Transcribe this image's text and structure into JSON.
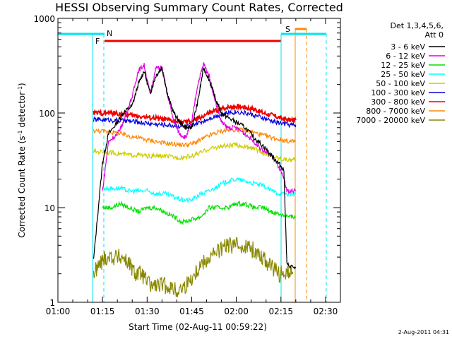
{
  "chart_data": {
    "type": "line",
    "title": "HESSI Observing Summary Count Rates, Corrected",
    "xlabel": "Start Time (02-Aug-11 00:59:22)",
    "ylabel": "Corrected Count Rate (s⁻¹ detector⁻¹)",
    "ylabel_main": "Corrected Count Rate (s",
    "ylabel_mid": " detector",
    "ylabel_end": ")",
    "ylabel_sup": "-1",
    "y_scale": "log",
    "ylim": [
      1,
      1000
    ],
    "xlim_minutes": [
      0,
      95
    ],
    "x_tick_labels": [
      "01:00",
      "01:15",
      "01:30",
      "01:45",
      "02:00",
      "02:15",
      "02:30"
    ],
    "x_tick_minutes": [
      0,
      15,
      30,
      45,
      60,
      75,
      90
    ],
    "y_tick_labels": [
      "1",
      "10",
      "100",
      "1000"
    ],
    "y_tick_values": [
      1,
      10,
      100,
      1000
    ],
    "grid": false,
    "legend_title": [
      "Det 1,3,4,5,6,",
      "Att 0"
    ],
    "legend_placement": "right",
    "series": [
      {
        "name": "3 - 6 keV",
        "color": "#000000",
        "points": [
          [
            12,
            2.8
          ],
          [
            15,
            30
          ],
          [
            17,
            60
          ],
          [
            20,
            80
          ],
          [
            22,
            100
          ],
          [
            25,
            120
          ],
          [
            27,
            200
          ],
          [
            29,
            280
          ],
          [
            31,
            160
          ],
          [
            33,
            250
          ],
          [
            35,
            300
          ],
          [
            37,
            150
          ],
          [
            39,
            100
          ],
          [
            41,
            80
          ],
          [
            43,
            70
          ],
          [
            45,
            70
          ],
          [
            47,
            130
          ],
          [
            49,
            300
          ],
          [
            51,
            220
          ],
          [
            53,
            140
          ],
          [
            55,
            100
          ],
          [
            57,
            90
          ],
          [
            60,
            80
          ],
          [
            63,
            70
          ],
          [
            66,
            55
          ],
          [
            69,
            45
          ],
          [
            72,
            35
          ],
          [
            74,
            30
          ],
          [
            76,
            25
          ],
          [
            77,
            2.5
          ],
          [
            80,
            2.3
          ]
        ]
      },
      {
        "name": "6 - 12 keV",
        "color": "#e000e0",
        "points": [
          [
            15,
            15
          ],
          [
            17,
            50
          ],
          [
            20,
            60
          ],
          [
            22,
            80
          ],
          [
            25,
            150
          ],
          [
            27,
            280
          ],
          [
            29,
            320
          ],
          [
            31,
            160
          ],
          [
            33,
            300
          ],
          [
            35,
            300
          ],
          [
            37,
            150
          ],
          [
            39,
            80
          ],
          [
            41,
            60
          ],
          [
            43,
            55
          ],
          [
            45,
            80
          ],
          [
            47,
            200
          ],
          [
            49,
            330
          ],
          [
            51,
            240
          ],
          [
            53,
            130
          ],
          [
            55,
            80
          ],
          [
            57,
            70
          ],
          [
            60,
            70
          ],
          [
            63,
            60
          ],
          [
            66,
            50
          ],
          [
            69,
            40
          ],
          [
            72,
            35
          ],
          [
            74,
            28
          ],
          [
            76,
            20
          ],
          [
            77,
            15
          ],
          [
            80,
            15
          ]
        ]
      },
      {
        "name": "12 - 25 keV",
        "color": "#00e000",
        "points": [
          [
            15,
            10
          ],
          [
            18,
            10
          ],
          [
            21,
            11
          ],
          [
            24,
            10
          ],
          [
            27,
            9
          ],
          [
            30,
            10
          ],
          [
            33,
            10
          ],
          [
            36,
            9
          ],
          [
            39,
            8
          ],
          [
            42,
            7
          ],
          [
            45,
            7.5
          ],
          [
            48,
            8
          ],
          [
            51,
            10
          ],
          [
            54,
            10
          ],
          [
            57,
            10
          ],
          [
            60,
            11
          ],
          [
            63,
            11
          ],
          [
            66,
            10
          ],
          [
            69,
            10
          ],
          [
            72,
            9
          ],
          [
            75,
            8.5
          ],
          [
            78,
            8
          ],
          [
            80,
            8
          ]
        ]
      },
      {
        "name": "25 - 50 keV",
        "color": "#00ffff",
        "points": [
          [
            15,
            16
          ],
          [
            18,
            16
          ],
          [
            21,
            16
          ],
          [
            24,
            15
          ],
          [
            27,
            15
          ],
          [
            30,
            15
          ],
          [
            33,
            14
          ],
          [
            36,
            14
          ],
          [
            39,
            13
          ],
          [
            42,
            12
          ],
          [
            45,
            12
          ],
          [
            48,
            14
          ],
          [
            51,
            15
          ],
          [
            54,
            17
          ],
          [
            57,
            19
          ],
          [
            60,
            20
          ],
          [
            63,
            19
          ],
          [
            66,
            18
          ],
          [
            69,
            17
          ],
          [
            72,
            15
          ],
          [
            75,
            14
          ],
          [
            78,
            14
          ],
          [
            80,
            14
          ]
        ]
      },
      {
        "name": "50 - 100 keV",
        "color": "#cccc00",
        "points": [
          [
            12,
            39
          ],
          [
            15,
            39
          ],
          [
            18,
            38
          ],
          [
            21,
            37
          ],
          [
            24,
            36
          ],
          [
            27,
            36
          ],
          [
            30,
            35
          ],
          [
            33,
            35
          ],
          [
            36,
            35
          ],
          [
            39,
            34
          ],
          [
            42,
            34
          ],
          [
            45,
            35
          ],
          [
            48,
            38
          ],
          [
            51,
            42
          ],
          [
            54,
            44
          ],
          [
            57,
            45
          ],
          [
            60,
            46
          ],
          [
            63,
            44
          ],
          [
            66,
            42
          ],
          [
            69,
            38
          ],
          [
            72,
            35
          ],
          [
            75,
            33
          ],
          [
            78,
            32
          ],
          [
            80,
            32
          ]
        ]
      },
      {
        "name": "100 - 300 keV",
        "color": "#0000e0",
        "points": [
          [
            12,
            85
          ],
          [
            15,
            85
          ],
          [
            18,
            84
          ],
          [
            21,
            83
          ],
          [
            24,
            82
          ],
          [
            27,
            80
          ],
          [
            30,
            78
          ],
          [
            33,
            76
          ],
          [
            36,
            75
          ],
          [
            39,
            74
          ],
          [
            42,
            72
          ],
          [
            45,
            74
          ],
          [
            48,
            80
          ],
          [
            51,
            88
          ],
          [
            54,
            95
          ],
          [
            57,
            100
          ],
          [
            60,
            103
          ],
          [
            63,
            100
          ],
          [
            66,
            95
          ],
          [
            69,
            88
          ],
          [
            72,
            82
          ],
          [
            75,
            78
          ],
          [
            78,
            75
          ],
          [
            80,
            75
          ]
        ]
      },
      {
        "name": "300 - 800 keV",
        "color": "#ee0000",
        "points": [
          [
            12,
            100
          ],
          [
            15,
            100
          ],
          [
            18,
            100
          ],
          [
            21,
            98
          ],
          [
            24,
            95
          ],
          [
            27,
            93
          ],
          [
            30,
            90
          ],
          [
            33,
            88
          ],
          [
            36,
            85
          ],
          [
            39,
            82
          ],
          [
            42,
            80
          ],
          [
            45,
            82
          ],
          [
            48,
            90
          ],
          [
            51,
            100
          ],
          [
            54,
            108
          ],
          [
            57,
            115
          ],
          [
            60,
            118
          ],
          [
            63,
            115
          ],
          [
            66,
            110
          ],
          [
            69,
            100
          ],
          [
            72,
            95
          ],
          [
            75,
            88
          ],
          [
            78,
            84
          ],
          [
            80,
            84
          ]
        ]
      },
      {
        "name": "800 - 7000 keV",
        "color": "#ff8800",
        "points": [
          [
            12,
            65
          ],
          [
            15,
            64
          ],
          [
            18,
            63
          ],
          [
            21,
            60
          ],
          [
            24,
            57
          ],
          [
            27,
            55
          ],
          [
            30,
            52
          ],
          [
            33,
            50
          ],
          [
            36,
            48
          ],
          [
            39,
            47
          ],
          [
            42,
            46
          ],
          [
            45,
            47
          ],
          [
            48,
            52
          ],
          [
            51,
            58
          ],
          [
            54,
            63
          ],
          [
            57,
            66
          ],
          [
            60,
            67
          ],
          [
            63,
            65
          ],
          [
            66,
            62
          ],
          [
            69,
            58
          ],
          [
            72,
            55
          ],
          [
            75,
            52
          ],
          [
            78,
            50
          ],
          [
            80,
            50
          ]
        ]
      },
      {
        "name": "7000 - 20000 keV",
        "color": "#888800",
        "points": [
          [
            12,
            2
          ],
          [
            14,
            2.5
          ],
          [
            16,
            3
          ],
          [
            19,
            3
          ],
          [
            22,
            3
          ],
          [
            24,
            2.5
          ],
          [
            26,
            2
          ],
          [
            28,
            2
          ],
          [
            31,
            1.5
          ],
          [
            34,
            1.5
          ],
          [
            37,
            1.5
          ],
          [
            40,
            1.3
          ],
          [
            43,
            1.5
          ],
          [
            46,
            2
          ],
          [
            48,
            2.5
          ],
          [
            51,
            3
          ],
          [
            54,
            3.5
          ],
          [
            57,
            4
          ],
          [
            60,
            4
          ],
          [
            63,
            4
          ],
          [
            66,
            3.5
          ],
          [
            69,
            3
          ],
          [
            71,
            2.5
          ],
          [
            74,
            2
          ],
          [
            77,
            2
          ],
          [
            79,
            2
          ]
        ]
      }
    ],
    "flag_labels": {
      "N": "N",
      "F": "F",
      "S": "S"
    }
  },
  "timestamp": "2-Aug-2011 04:31"
}
